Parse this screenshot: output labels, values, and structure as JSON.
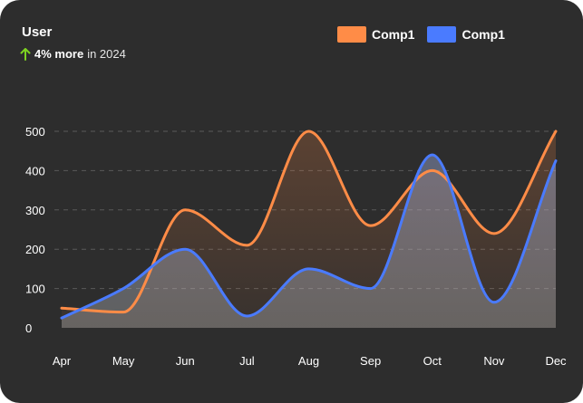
{
  "header": {
    "title": "User",
    "highlight": "4% more",
    "suffix": "in 2024"
  },
  "colors": {
    "background": "#2d2d2d",
    "comp1_orange": "#ff8c47",
    "comp1_blue": "#4a7bff",
    "up_arrow": "#7ed321"
  },
  "chart_data": {
    "type": "area",
    "x": [
      "Apr",
      "May",
      "Jun",
      "Jul",
      "Aug",
      "Sep",
      "Oct",
      "Nov",
      "Dec"
    ],
    "ylim": [
      0,
      500
    ],
    "yticks": [
      "0",
      "100",
      "200",
      "300",
      "400",
      "500"
    ],
    "grid": true,
    "legend_position": "top-right",
    "series": [
      {
        "name": "Comp1",
        "color": "#ff8c47",
        "values": [
          50,
          40,
          300,
          210,
          500,
          260,
          400,
          240,
          500
        ]
      },
      {
        "name": "Comp1",
        "color": "#4a7bff",
        "values": [
          25,
          100,
          200,
          30,
          150,
          100,
          440,
          65,
          425
        ]
      }
    ]
  }
}
